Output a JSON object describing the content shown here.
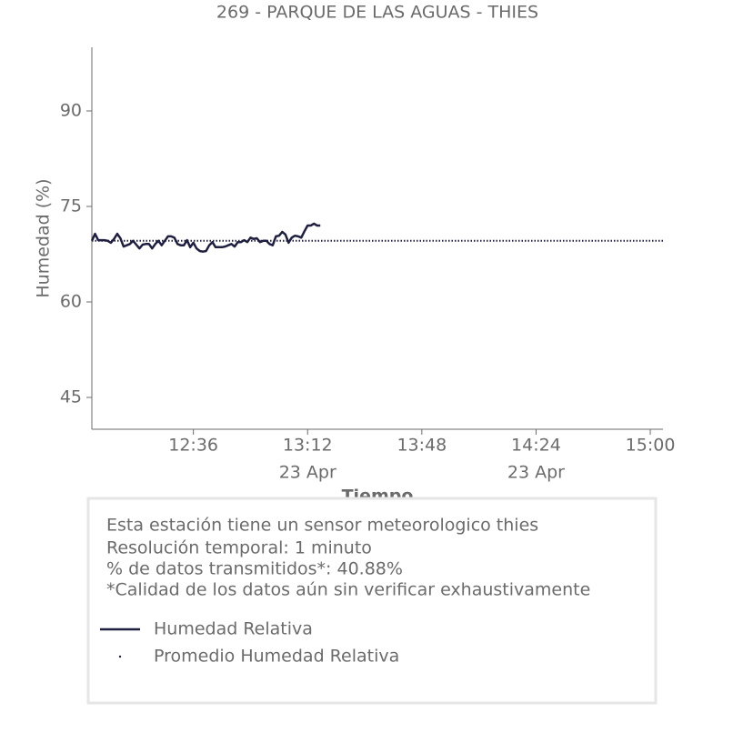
{
  "chart_data": {
    "type": "line",
    "title": "269 - PARQUE DE LAS AGUAS - THIES",
    "xlabel": "Tiempo",
    "ylabel": "Humedad (%)",
    "x": [
      "12:04",
      "12:05",
      "12:06",
      "12:07",
      "12:08",
      "12:09",
      "12:10",
      "12:11",
      "12:12",
      "12:13",
      "12:14",
      "12:15",
      "12:16",
      "12:17",
      "12:18",
      "12:19",
      "12:20",
      "12:21",
      "12:22",
      "12:23",
      "12:24",
      "12:25",
      "12:26",
      "12:27",
      "12:28",
      "12:29",
      "12:30",
      "12:31",
      "12:32",
      "12:33",
      "12:34",
      "12:35",
      "12:36",
      "12:37",
      "12:38",
      "12:39",
      "12:40",
      "12:41",
      "12:42",
      "12:43",
      "12:44",
      "12:45",
      "12:46",
      "12:47",
      "12:48",
      "12:49",
      "12:50",
      "12:51",
      "12:52",
      "12:53",
      "12:54",
      "12:55",
      "12:56",
      "12:57",
      "12:58",
      "12:59",
      "13:00",
      "13:01",
      "13:02",
      "13:03",
      "13:04",
      "13:05",
      "13:06",
      "13:07",
      "13:08",
      "13:09",
      "13:10",
      "13:11",
      "13:12",
      "13:13",
      "13:14",
      "13:15",
      "13:16"
    ],
    "series": [
      {
        "name": "Humedad Relativa",
        "color": "#1f1f3f",
        "values": [
          69.6,
          70.7,
          69.7,
          69.7,
          69.7,
          69.6,
          69.3,
          69.9,
          70.7,
          70.0,
          68.7,
          68.9,
          69.1,
          69.6,
          69.0,
          68.4,
          69.0,
          69.1,
          69.1,
          68.4,
          69.1,
          69.6,
          68.9,
          69.6,
          70.3,
          70.3,
          70.1,
          69.1,
          68.9,
          68.9,
          69.7,
          68.6,
          69.3,
          68.4,
          68.0,
          67.9,
          68.0,
          68.9,
          69.4,
          68.6,
          68.6,
          68.6,
          68.7,
          68.9,
          69.1,
          68.7,
          69.4,
          69.4,
          69.7,
          69.4,
          70.1,
          69.9,
          70.0,
          69.4,
          69.6,
          69.6,
          69.1,
          68.9,
          70.3,
          70.4,
          71.0,
          70.6,
          69.3,
          70.1,
          70.4,
          70.3,
          70.1,
          71.1,
          72.0,
          72.0,
          72.3,
          72.0,
          72.0
        ]
      }
    ],
    "mean": {
      "name": "Promedio Humedad Relativa",
      "color": "#1f1f3f",
      "value": 69.6
    },
    "xlim": [
      "12:04",
      "15:04"
    ],
    "xticks": [
      {
        "value": "12:36",
        "label": "12:36"
      },
      {
        "value": "13:12",
        "label": "13:12",
        "date": "23 Apr"
      },
      {
        "value": "13:48",
        "label": "13:48"
      },
      {
        "value": "14:24",
        "label": "14:24",
        "date": "23 Apr"
      },
      {
        "value": "15:00",
        "label": "15:00"
      }
    ],
    "ylim": [
      40,
      100
    ],
    "yticks": [
      45,
      60,
      75,
      90
    ],
    "info": [
      "Esta estación tiene un sensor meteorologico thies",
      "Resolución temporal: 1 minuto",
      "% de datos transmitidos*: 40.88%",
      "*Calidad de los datos aún sin verificar exhaustivamente"
    ]
  }
}
